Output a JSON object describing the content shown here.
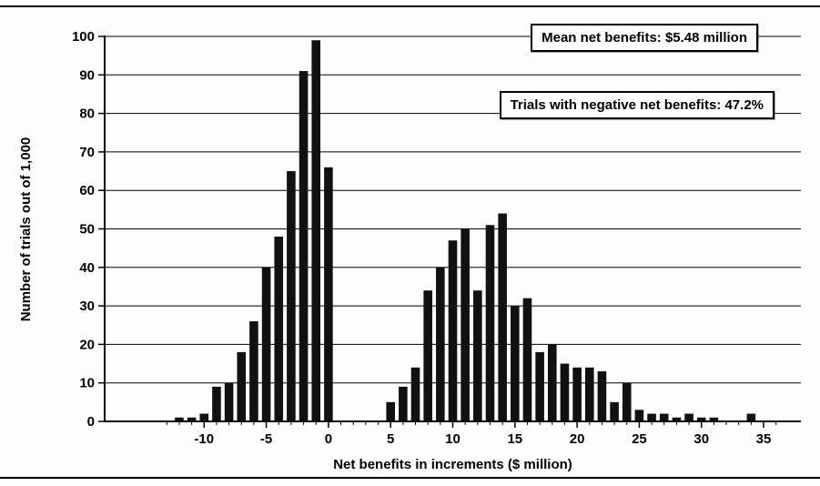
{
  "chart_data": {
    "type": "bar",
    "x": [
      -12,
      -11,
      -10,
      -9,
      -8,
      -7,
      -6,
      -5,
      -4,
      -3,
      -2,
      -1,
      0,
      1,
      2,
      3,
      4,
      5,
      6,
      7,
      8,
      9,
      10,
      11,
      12,
      13,
      14,
      15,
      16,
      17,
      18,
      19,
      20,
      21,
      22,
      23,
      24,
      25,
      26,
      27,
      28,
      29,
      30,
      31,
      32,
      33,
      34,
      35
    ],
    "counts": [
      1,
      1,
      2,
      9,
      10,
      18,
      26,
      40,
      48,
      65,
      91,
      99,
      66,
      0,
      0,
      0,
      0,
      5,
      9,
      14,
      34,
      40,
      47,
      50,
      34,
      51,
      54,
      30,
      32,
      18,
      20,
      15,
      14,
      14,
      13,
      5,
      10,
      3,
      2,
      2,
      1,
      2,
      1,
      1,
      0,
      0,
      2,
      0
    ],
    "xlabel": "Net benefits in increments ($ million)",
    "ylabel": "Number of trials out of 1,000",
    "xlim": [
      -18,
      38
    ],
    "ylim": [
      0,
      100
    ],
    "x_ticks": [
      -10,
      -5,
      0,
      5,
      10,
      15,
      20,
      25,
      30,
      35
    ],
    "y_ticks": [
      0,
      10,
      20,
      30,
      40,
      50,
      60,
      70,
      80,
      90,
      100
    ],
    "grid": true,
    "legend": "none",
    "bar_color": "#111111",
    "axis_color": "#000000",
    "annotations": [
      {
        "text": "Mean net benefits: $5.48 million"
      },
      {
        "text": "Trials with negative net benefits: 47.2%"
      }
    ]
  }
}
